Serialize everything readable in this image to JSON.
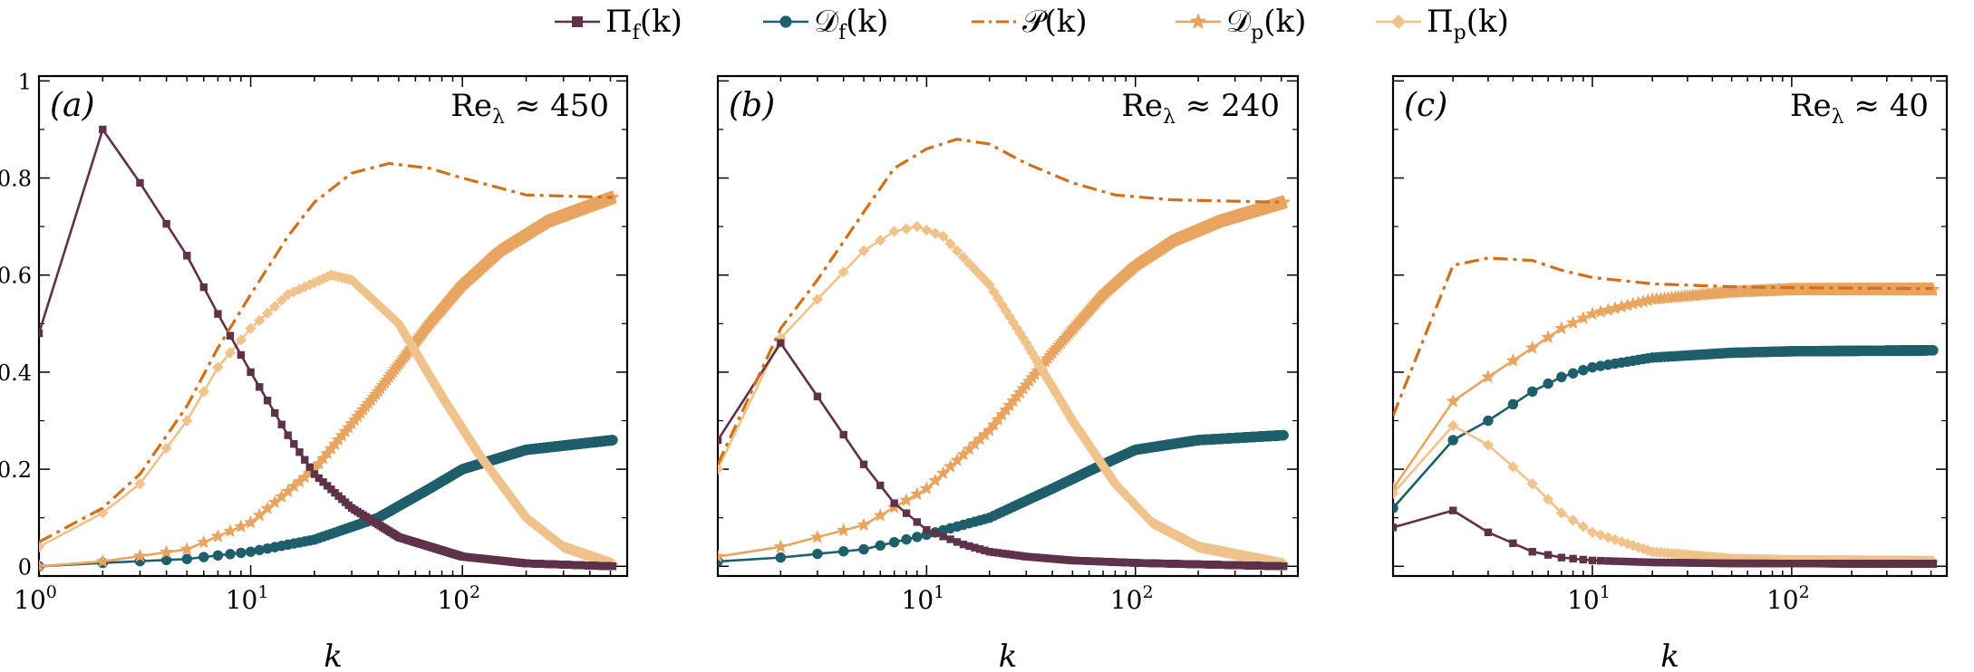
{
  "legend": {
    "placement": "top-center",
    "items": [
      {
        "id": "pif",
        "main": "Π",
        "sub": "f",
        "tail": "(k)",
        "color": "#5e3248",
        "marker": "square",
        "dash": false
      },
      {
        "id": "df",
        "main": "𝒟",
        "sub": "f",
        "tail": "(k)",
        "color": "#1f5f6b",
        "marker": "circle",
        "dash": false
      },
      {
        "id": "p",
        "main": "𝒫",
        "sub": "",
        "tail": "(k)",
        "color": "#d0701c",
        "marker": "none",
        "dash": true
      },
      {
        "id": "dp",
        "main": "𝒟",
        "sub": "p",
        "tail": "(k)",
        "color": "#e8a561",
        "marker": "star",
        "dash": false
      },
      {
        "id": "pip",
        "main": "Π",
        "sub": "p",
        "tail": "(k)",
        "color": "#f0c28c",
        "marker": "diamond",
        "dash": false
      }
    ]
  },
  "chart_data": [
    {
      "type": "line",
      "panel_label": "(a)",
      "annotation": {
        "main": "Re",
        "sub": "λ",
        "rest": " ≈ 450"
      },
      "xlabel": "k",
      "x_scale": "log",
      "xlim": [
        1,
        600
      ],
      "ylim": [
        -0.02,
        1.01
      ],
      "xticks": [
        {
          "v": 1,
          "e": "0"
        },
        {
          "v": 10,
          "e": "1"
        },
        {
          "v": 100,
          "e": "2"
        }
      ],
      "yticks": [
        0,
        0.2,
        0.4,
        0.6,
        0.8,
        1
      ],
      "yticklabels": [
        "0",
        "0.2",
        "0.4",
        "0.6",
        "0.8",
        "1"
      ],
      "kmax": 512,
      "series": [
        {
          "id": "pif",
          "points": [
            [
              1,
              0.48
            ],
            [
              2,
              0.9
            ],
            [
              3,
              0.79
            ],
            [
              5,
              0.64
            ],
            [
              7,
              0.52
            ],
            [
              10,
              0.4
            ],
            [
              15,
              0.27
            ],
            [
              20,
              0.19
            ],
            [
              30,
              0.12
            ],
            [
              50,
              0.06
            ],
            [
              100,
              0.02
            ],
            [
              200,
              0.006
            ],
            [
              512,
              0.0
            ]
          ]
        },
        {
          "id": "df",
          "points": [
            [
              1,
              0.0
            ],
            [
              2,
              0.007
            ],
            [
              5,
              0.015
            ],
            [
              10,
              0.03
            ],
            [
              20,
              0.055
            ],
            [
              40,
              0.1
            ],
            [
              70,
              0.16
            ],
            [
              100,
              0.2
            ],
            [
              200,
              0.24
            ],
            [
              512,
              0.26
            ]
          ]
        },
        {
          "id": "p",
          "points": [
            [
              1,
              0.05
            ],
            [
              2,
              0.12
            ],
            [
              3,
              0.19
            ],
            [
              5,
              0.33
            ],
            [
              7,
              0.45
            ],
            [
              10,
              0.56
            ],
            [
              15,
              0.68
            ],
            [
              20,
              0.75
            ],
            [
              30,
              0.81
            ],
            [
              45,
              0.83
            ],
            [
              70,
              0.82
            ],
            [
              100,
              0.8
            ],
            [
              200,
              0.765
            ],
            [
              512,
              0.76
            ]
          ]
        },
        {
          "id": "dp",
          "points": [
            [
              1,
              0.0
            ],
            [
              2,
              0.01
            ],
            [
              5,
              0.035
            ],
            [
              10,
              0.09
            ],
            [
              20,
              0.2
            ],
            [
              40,
              0.36
            ],
            [
              70,
              0.5
            ],
            [
              100,
              0.58
            ],
            [
              150,
              0.65
            ],
            [
              250,
              0.71
            ],
            [
              512,
              0.76
            ]
          ]
        },
        {
          "id": "pip",
          "points": [
            [
              1,
              0.04
            ],
            [
              2,
              0.11
            ],
            [
              3,
              0.17
            ],
            [
              5,
              0.3
            ],
            [
              7,
              0.41
            ],
            [
              10,
              0.49
            ],
            [
              15,
              0.56
            ],
            [
              24,
              0.6
            ],
            [
              30,
              0.59
            ],
            [
              50,
              0.5
            ],
            [
              80,
              0.35
            ],
            [
              120,
              0.23
            ],
            [
              200,
              0.1
            ],
            [
              300,
              0.04
            ],
            [
              512,
              0.005
            ]
          ]
        }
      ]
    },
    {
      "type": "line",
      "panel_label": "(b)",
      "annotation": {
        "main": "Re",
        "sub": "λ",
        "rest": " ≈ 240"
      },
      "xlabel": "k",
      "x_scale": "log",
      "xlim": [
        1,
        600
      ],
      "ylim": [
        -0.02,
        1.01
      ],
      "xticks": [
        {
          "v": 10,
          "e": "1"
        },
        {
          "v": 100,
          "e": "2"
        }
      ],
      "yticks": [
        0,
        0.2,
        0.4,
        0.6,
        0.8,
        1
      ],
      "yticklabels": [],
      "kmax": 512,
      "series": [
        {
          "id": "pif",
          "points": [
            [
              1,
              0.26
            ],
            [
              2,
              0.46
            ],
            [
              3,
              0.35
            ],
            [
              5,
              0.21
            ],
            [
              7,
              0.13
            ],
            [
              10,
              0.075
            ],
            [
              15,
              0.045
            ],
            [
              20,
              0.03
            ],
            [
              30,
              0.02
            ],
            [
              50,
              0.012
            ],
            [
              100,
              0.007
            ],
            [
              512,
              0.0
            ]
          ]
        },
        {
          "id": "df",
          "points": [
            [
              1,
              0.01
            ],
            [
              2,
              0.018
            ],
            [
              5,
              0.035
            ],
            [
              10,
              0.065
            ],
            [
              20,
              0.1
            ],
            [
              40,
              0.16
            ],
            [
              70,
              0.21
            ],
            [
              100,
              0.24
            ],
            [
              200,
              0.26
            ],
            [
              512,
              0.27
            ]
          ]
        },
        {
          "id": "p",
          "points": [
            [
              1,
              0.21
            ],
            [
              2,
              0.49
            ],
            [
              3,
              0.59
            ],
            [
              5,
              0.73
            ],
            [
              7,
              0.82
            ],
            [
              10,
              0.86
            ],
            [
              14,
              0.88
            ],
            [
              20,
              0.87
            ],
            [
              30,
              0.83
            ],
            [
              50,
              0.79
            ],
            [
              80,
              0.765
            ],
            [
              150,
              0.755
            ],
            [
              512,
              0.75
            ]
          ]
        },
        {
          "id": "dp",
          "points": [
            [
              1,
              0.02
            ],
            [
              2,
              0.04
            ],
            [
              5,
              0.085
            ],
            [
              10,
              0.16
            ],
            [
              20,
              0.28
            ],
            [
              40,
              0.44
            ],
            [
              70,
              0.56
            ],
            [
              100,
              0.62
            ],
            [
              150,
              0.67
            ],
            [
              250,
              0.71
            ],
            [
              512,
              0.75
            ]
          ]
        },
        {
          "id": "pip",
          "points": [
            [
              1,
              0.2
            ],
            [
              2,
              0.47
            ],
            [
              3,
              0.55
            ],
            [
              5,
              0.65
            ],
            [
              7,
              0.69
            ],
            [
              9,
              0.7
            ],
            [
              12,
              0.68
            ],
            [
              20,
              0.58
            ],
            [
              30,
              0.46
            ],
            [
              50,
              0.3
            ],
            [
              80,
              0.17
            ],
            [
              120,
              0.09
            ],
            [
              200,
              0.04
            ],
            [
              512,
              0.005
            ]
          ]
        }
      ]
    },
    {
      "type": "line",
      "panel_label": "(c)",
      "annotation": {
        "main": "Re",
        "sub": "λ",
        "rest": " ≈ 40"
      },
      "xlabel": "k",
      "x_scale": "log",
      "xlim": [
        1,
        600
      ],
      "ylim": [
        -0.02,
        1.01
      ],
      "xticks": [
        {
          "v": 10,
          "e": "1"
        },
        {
          "v": 100,
          "e": "2"
        }
      ],
      "yticks": [
        0,
        0.2,
        0.4,
        0.6,
        0.8,
        1
      ],
      "yticklabels": [],
      "kmax": 512,
      "series": [
        {
          "id": "pif",
          "points": [
            [
              1,
              0.08
            ],
            [
              2,
              0.115
            ],
            [
              3,
              0.07
            ],
            [
              5,
              0.03
            ],
            [
              7,
              0.018
            ],
            [
              10,
              0.012
            ],
            [
              20,
              0.008
            ],
            [
              50,
              0.006
            ],
            [
              512,
              0.005
            ]
          ]
        },
        {
          "id": "df",
          "points": [
            [
              1,
              0.12
            ],
            [
              2,
              0.26
            ],
            [
              3,
              0.3
            ],
            [
              5,
              0.36
            ],
            [
              7,
              0.39
            ],
            [
              10,
              0.41
            ],
            [
              20,
              0.43
            ],
            [
              50,
              0.44
            ],
            [
              100,
              0.443
            ],
            [
              512,
              0.445
            ]
          ]
        },
        {
          "id": "p",
          "points": [
            [
              1,
              0.31
            ],
            [
              2,
              0.62
            ],
            [
              3,
              0.635
            ],
            [
              5,
              0.63
            ],
            [
              7,
              0.61
            ],
            [
              10,
              0.595
            ],
            [
              20,
              0.582
            ],
            [
              50,
              0.576
            ],
            [
              100,
              0.574
            ],
            [
              512,
              0.572
            ]
          ]
        },
        {
          "id": "dp",
          "points": [
            [
              1,
              0.16
            ],
            [
              2,
              0.34
            ],
            [
              3,
              0.39
            ],
            [
              5,
              0.45
            ],
            [
              7,
              0.49
            ],
            [
              10,
              0.52
            ],
            [
              20,
              0.55
            ],
            [
              50,
              0.565
            ],
            [
              100,
              0.57
            ],
            [
              512,
              0.57
            ]
          ]
        },
        {
          "id": "pip",
          "points": [
            [
              1,
              0.15
            ],
            [
              2,
              0.29
            ],
            [
              3,
              0.25
            ],
            [
              5,
              0.17
            ],
            [
              7,
              0.11
            ],
            [
              10,
              0.07
            ],
            [
              20,
              0.03
            ],
            [
              50,
              0.015
            ],
            [
              100,
              0.012
            ],
            [
              512,
              0.01
            ]
          ]
        }
      ]
    }
  ]
}
